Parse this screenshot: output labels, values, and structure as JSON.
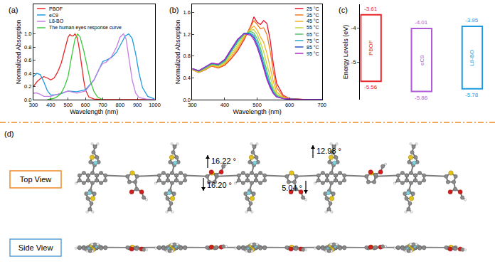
{
  "chart_data": [
    {
      "type": "line",
      "title": "(a)",
      "x_label": "Wavelength (nm)",
      "y_label": "Normalized Absorption",
      "xlim": [
        300,
        1000
      ],
      "xticks": [
        300,
        400,
        500,
        600,
        700,
        800,
        900,
        1000
      ],
      "ylim": [
        0,
        1.45
      ],
      "yticks": [
        {
          "value": 0,
          "label": "0.0"
        },
        0.2,
        0.4,
        0.6,
        0.8,
        {
          "value": 1,
          "label": "1.0"
        }
      ],
      "legend": "top-left",
      "series": [
        {
          "name": "PBOF",
          "color": "#e8262a",
          "x": [
            300,
            320,
            340,
            360,
            380,
            400,
            420,
            440,
            460,
            480,
            500,
            510,
            520,
            530,
            540,
            550,
            560,
            570,
            580,
            590,
            600,
            620,
            650,
            700,
            800,
            900,
            1000
          ],
          "values": [
            0.2,
            0.27,
            0.32,
            0.35,
            0.33,
            0.3,
            0.33,
            0.42,
            0.55,
            0.75,
            0.95,
            0.99,
            0.97,
            0.97,
            1.0,
            0.96,
            0.85,
            0.68,
            0.48,
            0.3,
            0.15,
            0.04,
            0.01,
            0,
            0,
            0,
            0
          ]
        },
        {
          "name": "eC9",
          "color": "#1e9be0",
          "x": [
            300,
            320,
            340,
            360,
            380,
            400,
            450,
            500,
            550,
            600,
            650,
            680,
            700,
            720,
            750,
            780,
            810,
            830,
            850,
            870,
            890,
            910,
            930,
            960,
            1000
          ],
          "values": [
            0.35,
            0.4,
            0.38,
            0.27,
            0.14,
            0.07,
            0.08,
            0.13,
            0.12,
            0.15,
            0.3,
            0.48,
            0.58,
            0.6,
            0.64,
            0.72,
            0.88,
            0.97,
            1.0,
            0.93,
            0.7,
            0.4,
            0.18,
            0.05,
            0.01
          ]
        },
        {
          "name": "L8-BO",
          "color": "#c77fe0",
          "x": [
            300,
            320,
            340,
            360,
            400,
            450,
            500,
            550,
            600,
            650,
            680,
            700,
            720,
            750,
            780,
            800,
            820,
            835,
            850,
            870,
            890,
            910,
            950,
            1000
          ],
          "values": [
            0.1,
            0.1,
            0.08,
            0.05,
            0.05,
            0.09,
            0.13,
            0.1,
            0.13,
            0.3,
            0.47,
            0.55,
            0.57,
            0.65,
            0.8,
            0.95,
            1.0,
            0.92,
            0.65,
            0.3,
            0.1,
            0.03,
            0.01,
            0
          ]
        },
        {
          "name": "The human eyes response curve",
          "color": "#3cc83c",
          "x": [
            380,
            400,
            420,
            440,
            460,
            480,
            500,
            520,
            540,
            555,
            570,
            590,
            610,
            630,
            650,
            670,
            700
          ],
          "values": [
            0,
            0.01,
            0.02,
            0.05,
            0.1,
            0.2,
            0.35,
            0.65,
            0.92,
            1.0,
            0.95,
            0.75,
            0.5,
            0.27,
            0.12,
            0.04,
            0
          ]
        }
      ]
    },
    {
      "type": "line",
      "title": "(b)",
      "x_label": "Wavelength (nm)",
      "y_label": "Normalized Absorption",
      "xlim": [
        300,
        700
      ],
      "xticks": [
        300,
        400,
        500,
        600,
        700
      ],
      "ylim": [
        0,
        1.75
      ],
      "yticks": [
        {
          "value": 0,
          "label": "0.0"
        },
        0.4,
        0.8,
        1.2,
        1.6
      ],
      "legend": "top-right",
      "x": [
        300,
        320,
        340,
        360,
        380,
        400,
        420,
        440,
        460,
        480,
        490,
        500,
        510,
        520,
        530,
        540,
        550,
        560,
        580,
        600,
        650,
        700
      ],
      "series": [
        {
          "name": "25 °C",
          "color": "#e8112d",
          "values": [
            0.55,
            0.5,
            0.55,
            0.62,
            0.58,
            0.63,
            0.75,
            0.9,
            1.1,
            1.35,
            1.52,
            1.42,
            1.38,
            1.45,
            1.4,
            1.1,
            0.65,
            0.3,
            0.08,
            0.02,
            0,
            0
          ]
        },
        {
          "name": "35 °C",
          "color": "#f47a20",
          "values": [
            0.55,
            0.5,
            0.55,
            0.62,
            0.58,
            0.64,
            0.76,
            0.92,
            1.12,
            1.35,
            1.45,
            1.38,
            1.3,
            1.32,
            1.2,
            0.9,
            0.5,
            0.22,
            0.06,
            0.02,
            0,
            0
          ]
        },
        {
          "name": "45 °C",
          "color": "#efb321",
          "values": [
            0.55,
            0.5,
            0.56,
            0.63,
            0.6,
            0.66,
            0.8,
            0.96,
            1.15,
            1.3,
            1.35,
            1.28,
            1.15,
            1.05,
            0.85,
            0.6,
            0.33,
            0.14,
            0.04,
            0.01,
            0,
            0
          ]
        },
        {
          "name": "55 °C",
          "color": "#c4d63a",
          "values": [
            0.56,
            0.51,
            0.57,
            0.64,
            0.62,
            0.68,
            0.84,
            1.0,
            1.18,
            1.28,
            1.28,
            1.2,
            1.05,
            0.88,
            0.65,
            0.42,
            0.22,
            0.1,
            0.03,
            0.01,
            0,
            0
          ]
        },
        {
          "name": "65 °C",
          "color": "#55c468",
          "values": [
            0.56,
            0.52,
            0.58,
            0.65,
            0.63,
            0.7,
            0.88,
            1.05,
            1.2,
            1.25,
            1.22,
            1.12,
            0.95,
            0.75,
            0.52,
            0.32,
            0.17,
            0.08,
            0.02,
            0.01,
            0,
            0
          ]
        },
        {
          "name": "75 °C",
          "color": "#24a9c8",
          "values": [
            0.57,
            0.53,
            0.59,
            0.66,
            0.64,
            0.72,
            0.9,
            1.08,
            1.22,
            1.22,
            1.18,
            1.05,
            0.88,
            0.66,
            0.45,
            0.27,
            0.14,
            0.06,
            0.02,
            0.01,
            0,
            0
          ]
        },
        {
          "name": "85 °C",
          "color": "#2753c8",
          "values": [
            0.57,
            0.53,
            0.6,
            0.67,
            0.65,
            0.73,
            0.92,
            1.1,
            1.22,
            1.2,
            1.14,
            1.0,
            0.82,
            0.6,
            0.4,
            0.24,
            0.12,
            0.05,
            0.02,
            0.01,
            0,
            0
          ]
        },
        {
          "name": "95 °C",
          "color": "#b02bc4",
          "values": [
            0.57,
            0.53,
            0.6,
            0.67,
            0.65,
            0.74,
            0.93,
            1.11,
            1.21,
            1.18,
            1.1,
            0.96,
            0.78,
            0.56,
            0.37,
            0.22,
            0.11,
            0.05,
            0.02,
            0.01,
            0,
            0
          ]
        }
      ]
    },
    {
      "type": "energy_levels",
      "title": "(c)",
      "y_label": "Energy Levels (eV)",
      "ylim": [
        -6.1,
        -3.3
      ],
      "yticks": [
        -5,
        -4
      ],
      "categories": [
        "PBOF",
        "eC9",
        "L8-BO"
      ],
      "lumo": [
        -3.61,
        -4.01,
        -3.95
      ],
      "homo": [
        -5.56,
        -5.86,
        -5.78
      ],
      "colors": [
        "#e8262a",
        "#b05ad8",
        "#1e9be0"
      ],
      "data_labels": true,
      "tick_labels": "y"
    }
  ],
  "panel_d": {
    "label": "(d)",
    "views": [
      "Top View",
      "Side View"
    ],
    "angles": [
      {
        "label": "16.22 °",
        "direction": "up"
      },
      {
        "label": "12.98 °",
        "direction": "up"
      },
      {
        "label": "16.20 °",
        "direction": "down"
      },
      {
        "label": "5.04 °",
        "direction": "down"
      }
    ]
  }
}
